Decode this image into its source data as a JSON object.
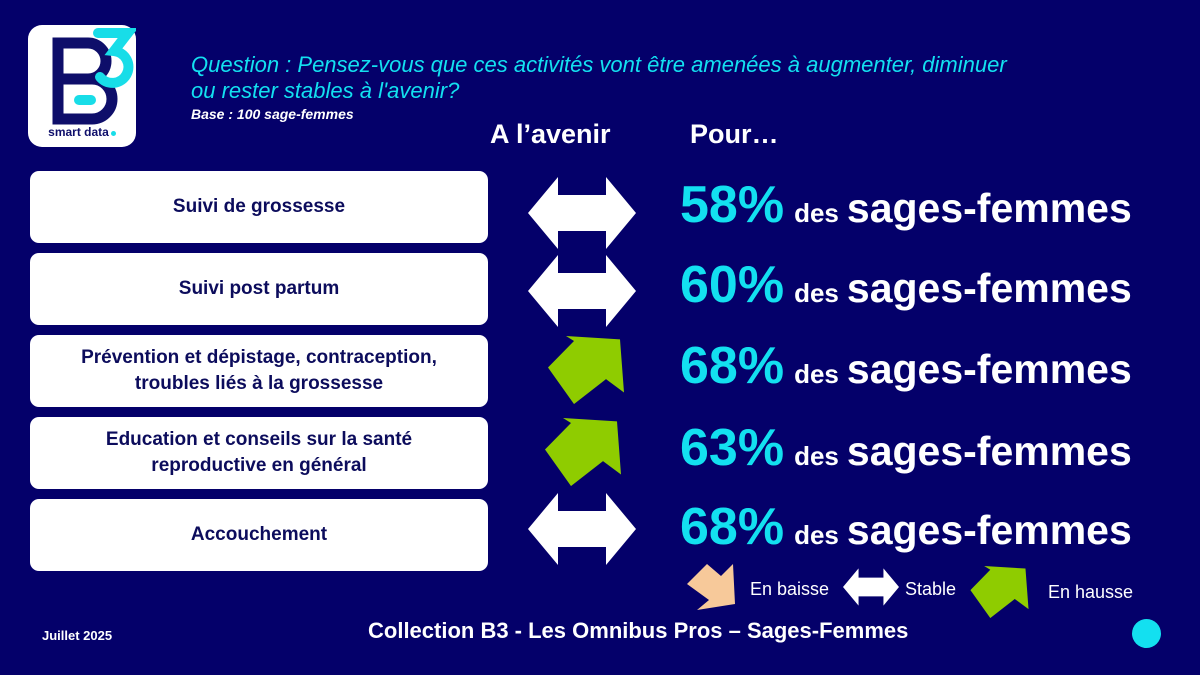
{
  "logo": {
    "mark": "B3",
    "text": "smart data"
  },
  "question": "Question : Pensez-vous que ces activités vont être amenées à augmenter, diminuer ou rester stables à l'avenir?",
  "base": "Base : 100 sage-femmes",
  "headers": {
    "avenir": "A l’avenir",
    "pour": "Pour…"
  },
  "rows": [
    {
      "activity": "Suivi de grossesse",
      "trend": "stable",
      "percent": "58%",
      "des": "des",
      "target": "sages-femmes"
    },
    {
      "activity": "Suivi post partum",
      "trend": "stable",
      "percent": "60%",
      "des": "des",
      "target": "sages-femmes"
    },
    {
      "activity": "Prévention et dépistage, contraception, troubles liés à la grossesse",
      "trend": "up",
      "percent": "68%",
      "des": "des",
      "target": "sages-femmes"
    },
    {
      "activity": "Education et conseils sur la santé reproductive en général",
      "trend": "up",
      "percent": "63%",
      "des": "des",
      "target": "sages-femmes"
    },
    {
      "activity": "Accouchement",
      "trend": "stable",
      "percent": "68%",
      "des": "des",
      "target": "sages-femmes"
    }
  ],
  "legend": {
    "down": "En baisse",
    "stable": "Stable",
    "up": "En hausse"
  },
  "footer": {
    "date": "Juillet 2025",
    "collection": "Collection  B3 - Les Omnibus Pros – Sages-Femmes"
  },
  "colors": {
    "background": "#04006a",
    "accent": "#13e0f0",
    "up": "#8fcc00",
    "down": "#f7c99a",
    "stable": "#ffffff"
  }
}
